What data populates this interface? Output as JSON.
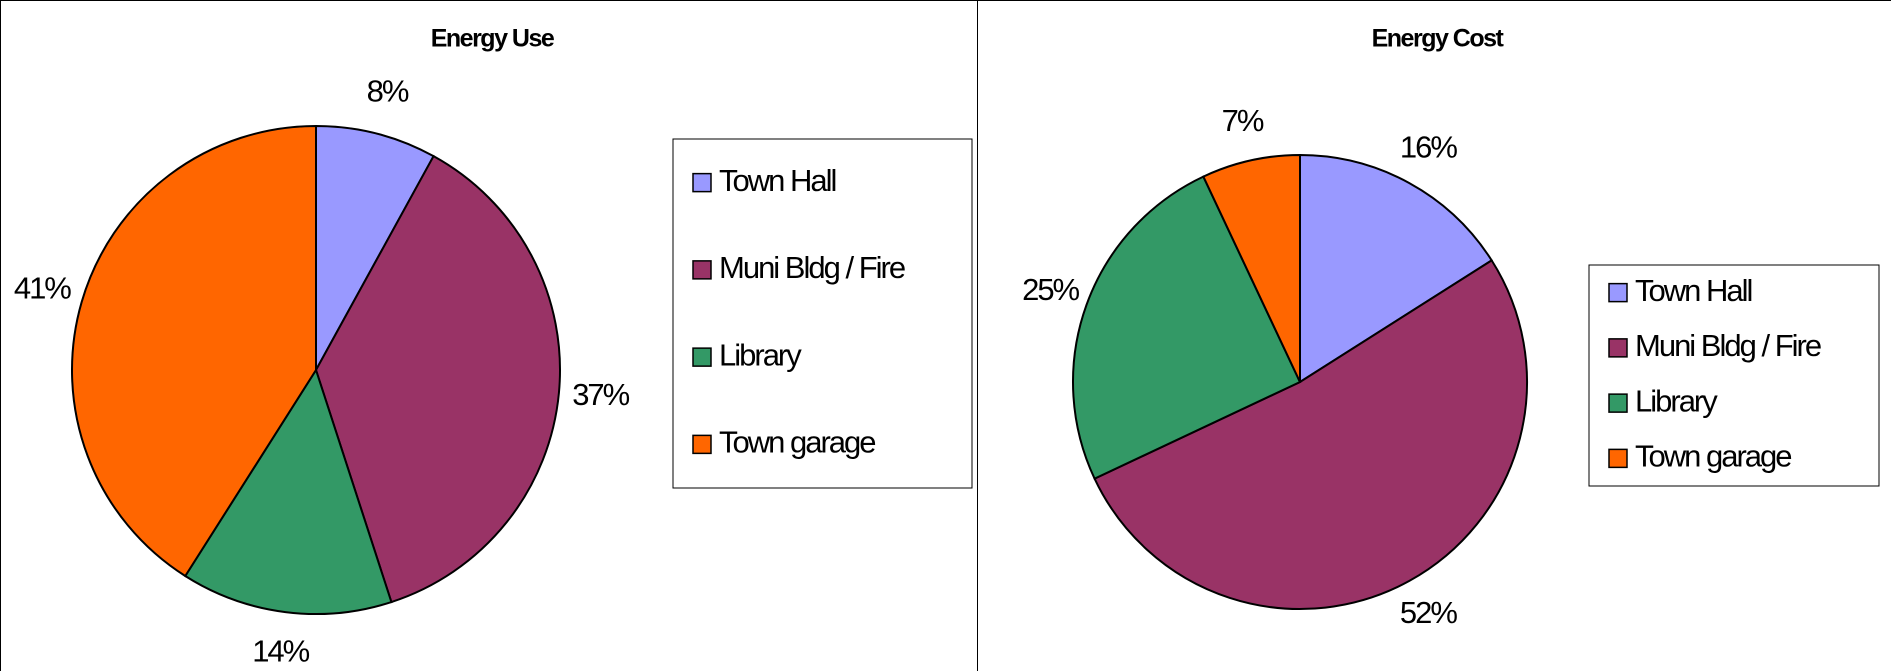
{
  "chart_data": [
    {
      "type": "pie",
      "title": "Energy Use",
      "categories": [
        "Town Hall",
        "Muni Bldg / Fire",
        "Library",
        "Town garage"
      ],
      "values": [
        8,
        37,
        14,
        41
      ],
      "value_labels": [
        "8%",
        "37%",
        "14%",
        "41%"
      ],
      "colors": [
        "#9999ff",
        "#993366",
        "#339966",
        "#ff6600"
      ]
    },
    {
      "type": "pie",
      "title": "Energy Cost",
      "categories": [
        "Town Hall",
        "Muni Bldg / Fire",
        "Library",
        "Town garage"
      ],
      "values": [
        16,
        52,
        25,
        7
      ],
      "value_labels": [
        "16%",
        "52%",
        "25%",
        "7%"
      ],
      "colors": [
        "#9999ff",
        "#993366",
        "#339966",
        "#ff6600"
      ]
    }
  ]
}
